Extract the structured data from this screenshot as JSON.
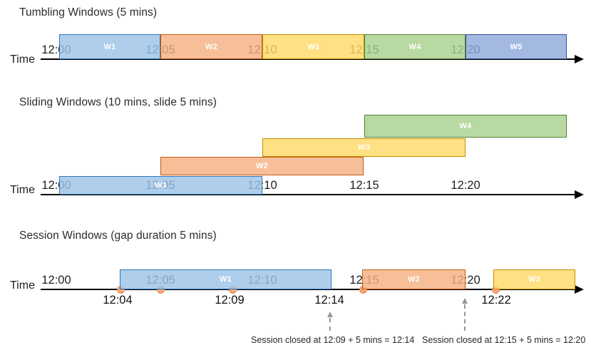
{
  "palette": {
    "blue": {
      "fill": "#9DC3E6",
      "border": "#2E75B6"
    },
    "orange": {
      "fill": "#F4B183",
      "border": "#C55A11"
    },
    "yellow": {
      "fill": "#FFD966",
      "border": "#BF9000"
    },
    "green": {
      "fill": "#A9D18E",
      "border": "#538135"
    },
    "indigo": {
      "fill": "#8FAADC",
      "border": "#2F5597"
    },
    "event_dot": {
      "fill": "#F4A678",
      "border": "#E98C4D"
    },
    "dashed_arrow": "#979797",
    "axis": "#000000",
    "window_fill_alpha": 0.82
  },
  "sections": [
    {
      "id": "tumbling",
      "title": "Tumbling Windows (5 mins)",
      "time_axis_label": "Time",
      "ticks": [
        "12:00",
        "12:05",
        "12:10",
        "12:15",
        "12:20"
      ],
      "windows": [
        {
          "label": "W1",
          "start": "12:00",
          "end": "12:05",
          "color": "blue"
        },
        {
          "label": "W2",
          "start": "12:05",
          "end": "12:10",
          "color": "orange"
        },
        {
          "label": "W3",
          "start": "12:10",
          "end": "12:15",
          "color": "yellow"
        },
        {
          "label": "W4",
          "start": "12:15",
          "end": "12:20",
          "color": "green"
        },
        {
          "label": "W5",
          "start": "12:20",
          "end": "12:25",
          "color": "indigo"
        }
      ]
    },
    {
      "id": "sliding",
      "title": "Sliding Windows (10 mins, slide 5 mins)",
      "time_axis_label": "Time",
      "ticks": [
        "12:00",
        "12:05",
        "12:10",
        "12:15",
        "12:20"
      ],
      "windows": [
        {
          "label": "W1",
          "start": "12:00",
          "end": "12:10",
          "color": "blue"
        },
        {
          "label": "W2",
          "start": "12:05",
          "end": "12:15",
          "color": "orange"
        },
        {
          "label": "W3",
          "start": "12:10",
          "end": "12:20",
          "color": "yellow"
        },
        {
          "label": "W4",
          "start": "12:15",
          "end": "12:25",
          "color": "green"
        }
      ]
    },
    {
      "id": "session",
      "title": "Session Windows (gap duration 5 mins)",
      "time_axis_label": "Time",
      "ticks": [
        "12:00",
        "12:05",
        "12:10",
        "12:15",
        "12:20"
      ],
      "windows": [
        {
          "label": "W1",
          "start": "12:04",
          "end": "12:14",
          "color": "blue"
        },
        {
          "label": "W2",
          "start": "12:15",
          "end": "12:20",
          "color": "orange"
        },
        {
          "label": "W3",
          "start": "12:22",
          "color": "yellow"
        }
      ],
      "event_times_below_axis": [
        "12:04",
        "12:09",
        "12:14",
        "12:22"
      ],
      "annotations": [
        "Session closed at 12:09 + 5 mins = 12:14",
        "Session closed at 12:15 + 5 mins = 12:20"
      ]
    }
  ]
}
